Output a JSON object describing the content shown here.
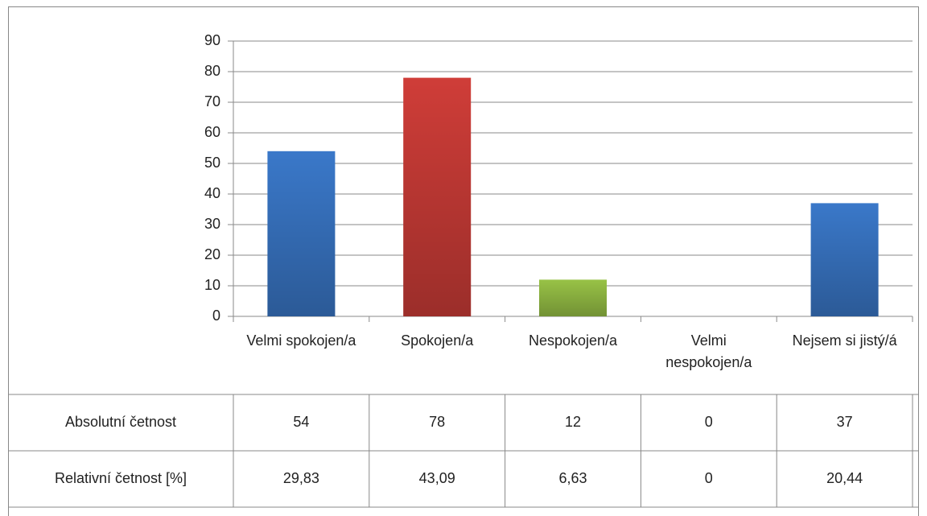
{
  "chart_data": {
    "type": "bar",
    "categories": [
      "Velmi spokojen/a",
      "Spokojen/a",
      "Nespokojen/a",
      "Velmi nespokojen/a",
      "Nejsem si jistý/á"
    ],
    "values": [
      54,
      78,
      12,
      0,
      37
    ],
    "colors": [
      "#3a78c9",
      "#cf3d38",
      "#98c246",
      "#36afd3"
    ],
    "ylim": [
      0,
      90
    ],
    "yticks": [
      0,
      10,
      20,
      30,
      40,
      50,
      60,
      70,
      80,
      90
    ],
    "grid": true,
    "table": {
      "row_labels": [
        "Absolutní četnost",
        "Relativní četnost [%]"
      ],
      "relative": [
        "29,83",
        "43,09",
        "6,63",
        "0",
        "20,44"
      ]
    }
  }
}
